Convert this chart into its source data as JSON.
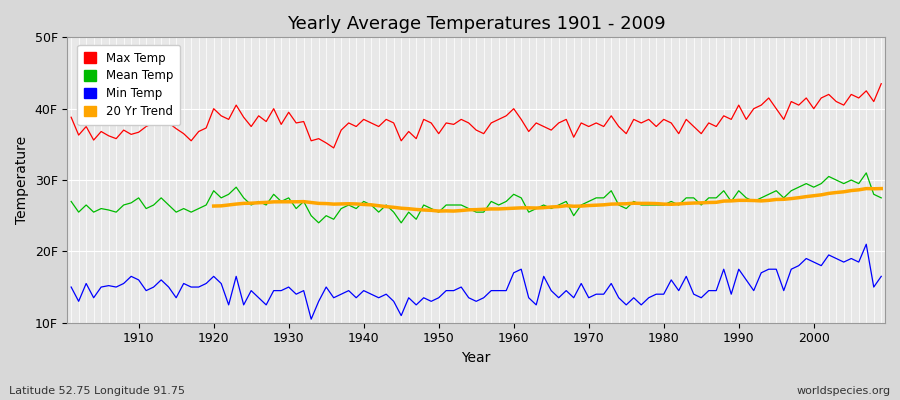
{
  "title": "Yearly Average Temperatures 1901 - 2009",
  "xlabel": "Year",
  "ylabel": "Temperature",
  "subtitle_left": "Latitude 52.75 Longitude 91.75",
  "subtitle_right": "worldspecies.org",
  "years": [
    1901,
    1902,
    1903,
    1904,
    1905,
    1906,
    1907,
    1908,
    1909,
    1910,
    1911,
    1912,
    1913,
    1914,
    1915,
    1916,
    1917,
    1918,
    1919,
    1920,
    1921,
    1922,
    1923,
    1924,
    1925,
    1926,
    1927,
    1928,
    1929,
    1930,
    1931,
    1932,
    1933,
    1934,
    1935,
    1936,
    1937,
    1938,
    1939,
    1940,
    1941,
    1942,
    1943,
    1944,
    1945,
    1946,
    1947,
    1948,
    1949,
    1950,
    1951,
    1952,
    1953,
    1954,
    1955,
    1956,
    1957,
    1958,
    1959,
    1960,
    1961,
    1962,
    1963,
    1964,
    1965,
    1966,
    1967,
    1968,
    1969,
    1970,
    1971,
    1972,
    1973,
    1974,
    1975,
    1976,
    1977,
    1978,
    1979,
    1980,
    1981,
    1982,
    1983,
    1984,
    1985,
    1986,
    1987,
    1988,
    1989,
    1990,
    1991,
    1992,
    1993,
    1994,
    1995,
    1996,
    1997,
    1998,
    1999,
    2000,
    2001,
    2002,
    2003,
    2004,
    2005,
    2006,
    2007,
    2008,
    2009
  ],
  "max_temp": [
    38.8,
    36.3,
    37.5,
    35.6,
    36.8,
    36.2,
    35.8,
    37.0,
    36.4,
    36.7,
    37.5,
    38.0,
    38.5,
    38.0,
    37.2,
    36.5,
    35.5,
    36.8,
    37.3,
    40.0,
    39.0,
    38.5,
    40.5,
    38.8,
    37.5,
    39.0,
    38.2,
    40.0,
    37.8,
    39.5,
    38.0,
    38.2,
    35.5,
    35.8,
    35.2,
    34.5,
    37.0,
    38.0,
    37.5,
    38.5,
    38.0,
    37.5,
    38.5,
    38.0,
    35.5,
    36.8,
    35.8,
    38.5,
    38.0,
    36.5,
    38.0,
    37.8,
    38.5,
    38.0,
    37.0,
    36.5,
    38.0,
    38.5,
    39.0,
    40.0,
    38.5,
    36.8,
    38.0,
    37.5,
    37.0,
    38.0,
    38.5,
    36.0,
    38.0,
    37.5,
    38.0,
    37.5,
    39.0,
    37.5,
    36.5,
    38.5,
    38.0,
    38.5,
    37.5,
    38.5,
    38.0,
    36.5,
    38.5,
    37.5,
    36.5,
    38.0,
    37.5,
    39.0,
    38.5,
    40.5,
    38.5,
    40.0,
    40.5,
    41.5,
    40.0,
    38.5,
    41.0,
    40.5,
    41.5,
    40.0,
    41.5,
    42.0,
    41.0,
    40.5,
    42.0,
    41.5,
    42.5,
    41.0,
    43.5
  ],
  "mean_temp": [
    27.0,
    25.5,
    26.5,
    25.5,
    26.0,
    25.8,
    25.5,
    26.5,
    26.8,
    27.5,
    26.0,
    26.5,
    27.5,
    26.5,
    25.5,
    26.0,
    25.5,
    26.0,
    26.5,
    28.5,
    27.5,
    28.0,
    29.0,
    27.5,
    26.5,
    27.0,
    26.5,
    28.0,
    27.0,
    27.5,
    26.0,
    27.0,
    25.0,
    24.0,
    25.0,
    24.5,
    26.0,
    26.5,
    26.0,
    27.0,
    26.5,
    25.5,
    26.5,
    25.5,
    24.0,
    25.5,
    24.5,
    26.5,
    26.0,
    25.5,
    26.5,
    26.5,
    26.5,
    26.0,
    25.5,
    25.5,
    27.0,
    26.5,
    27.0,
    28.0,
    27.5,
    25.5,
    26.0,
    26.5,
    26.0,
    26.5,
    27.0,
    25.0,
    26.5,
    27.0,
    27.5,
    27.5,
    28.5,
    26.5,
    26.0,
    27.0,
    26.5,
    26.5,
    26.5,
    26.5,
    27.0,
    26.5,
    27.5,
    27.5,
    26.5,
    27.5,
    27.5,
    28.5,
    27.0,
    28.5,
    27.5,
    27.0,
    27.5,
    28.0,
    28.5,
    27.5,
    28.5,
    29.0,
    29.5,
    29.0,
    29.5,
    30.5,
    30.0,
    29.5,
    30.0,
    29.5,
    31.0,
    28.0,
    27.5
  ],
  "min_temp": [
    15.0,
    13.0,
    15.5,
    13.5,
    15.0,
    15.2,
    15.0,
    15.5,
    16.5,
    16.0,
    14.5,
    15.0,
    16.0,
    15.0,
    13.5,
    15.5,
    15.0,
    15.0,
    15.5,
    16.5,
    15.5,
    12.5,
    16.5,
    12.5,
    14.5,
    13.5,
    12.5,
    14.5,
    14.5,
    15.0,
    14.0,
    14.5,
    10.5,
    13.0,
    15.0,
    13.5,
    14.0,
    14.5,
    13.5,
    14.5,
    14.0,
    13.5,
    14.0,
    13.0,
    11.0,
    13.5,
    12.5,
    13.5,
    13.0,
    13.5,
    14.5,
    14.5,
    15.0,
    13.5,
    13.0,
    13.5,
    14.5,
    14.5,
    14.5,
    17.0,
    17.5,
    13.5,
    12.5,
    16.5,
    14.5,
    13.5,
    14.5,
    13.5,
    15.5,
    13.5,
    14.0,
    14.0,
    15.5,
    13.5,
    12.5,
    13.5,
    12.5,
    13.5,
    14.0,
    14.0,
    16.0,
    14.5,
    16.5,
    14.0,
    13.5,
    14.5,
    14.5,
    17.5,
    14.0,
    17.5,
    16.0,
    14.5,
    17.0,
    17.5,
    17.5,
    14.5,
    17.5,
    18.0,
    19.0,
    18.5,
    18.0,
    19.5,
    19.0,
    18.5,
    19.0,
    18.5,
    21.0,
    15.0,
    16.5
  ],
  "ylim_min": 10,
  "ylim_max": 50,
  "yticks": [
    10,
    20,
    30,
    40,
    50
  ],
  "ytick_labels": [
    "10F",
    "20F",
    "30F",
    "40F",
    "50F"
  ],
  "xticks": [
    1910,
    1920,
    1930,
    1940,
    1950,
    1960,
    1970,
    1980,
    1990,
    2000
  ],
  "color_max": "#ff0000",
  "color_mean": "#00bb00",
  "color_min": "#0000ff",
  "color_trend": "#ffa500",
  "bg_color": "#d8d8d8",
  "plot_bg_color": "#e8e8e8",
  "grid_color": "#ffffff",
  "legend_labels": [
    "Max Temp",
    "Mean Temp",
    "Min Temp",
    "20 Yr Trend"
  ],
  "trend_window": 20,
  "figwidth": 9.0,
  "figheight": 4.0,
  "dpi": 100
}
